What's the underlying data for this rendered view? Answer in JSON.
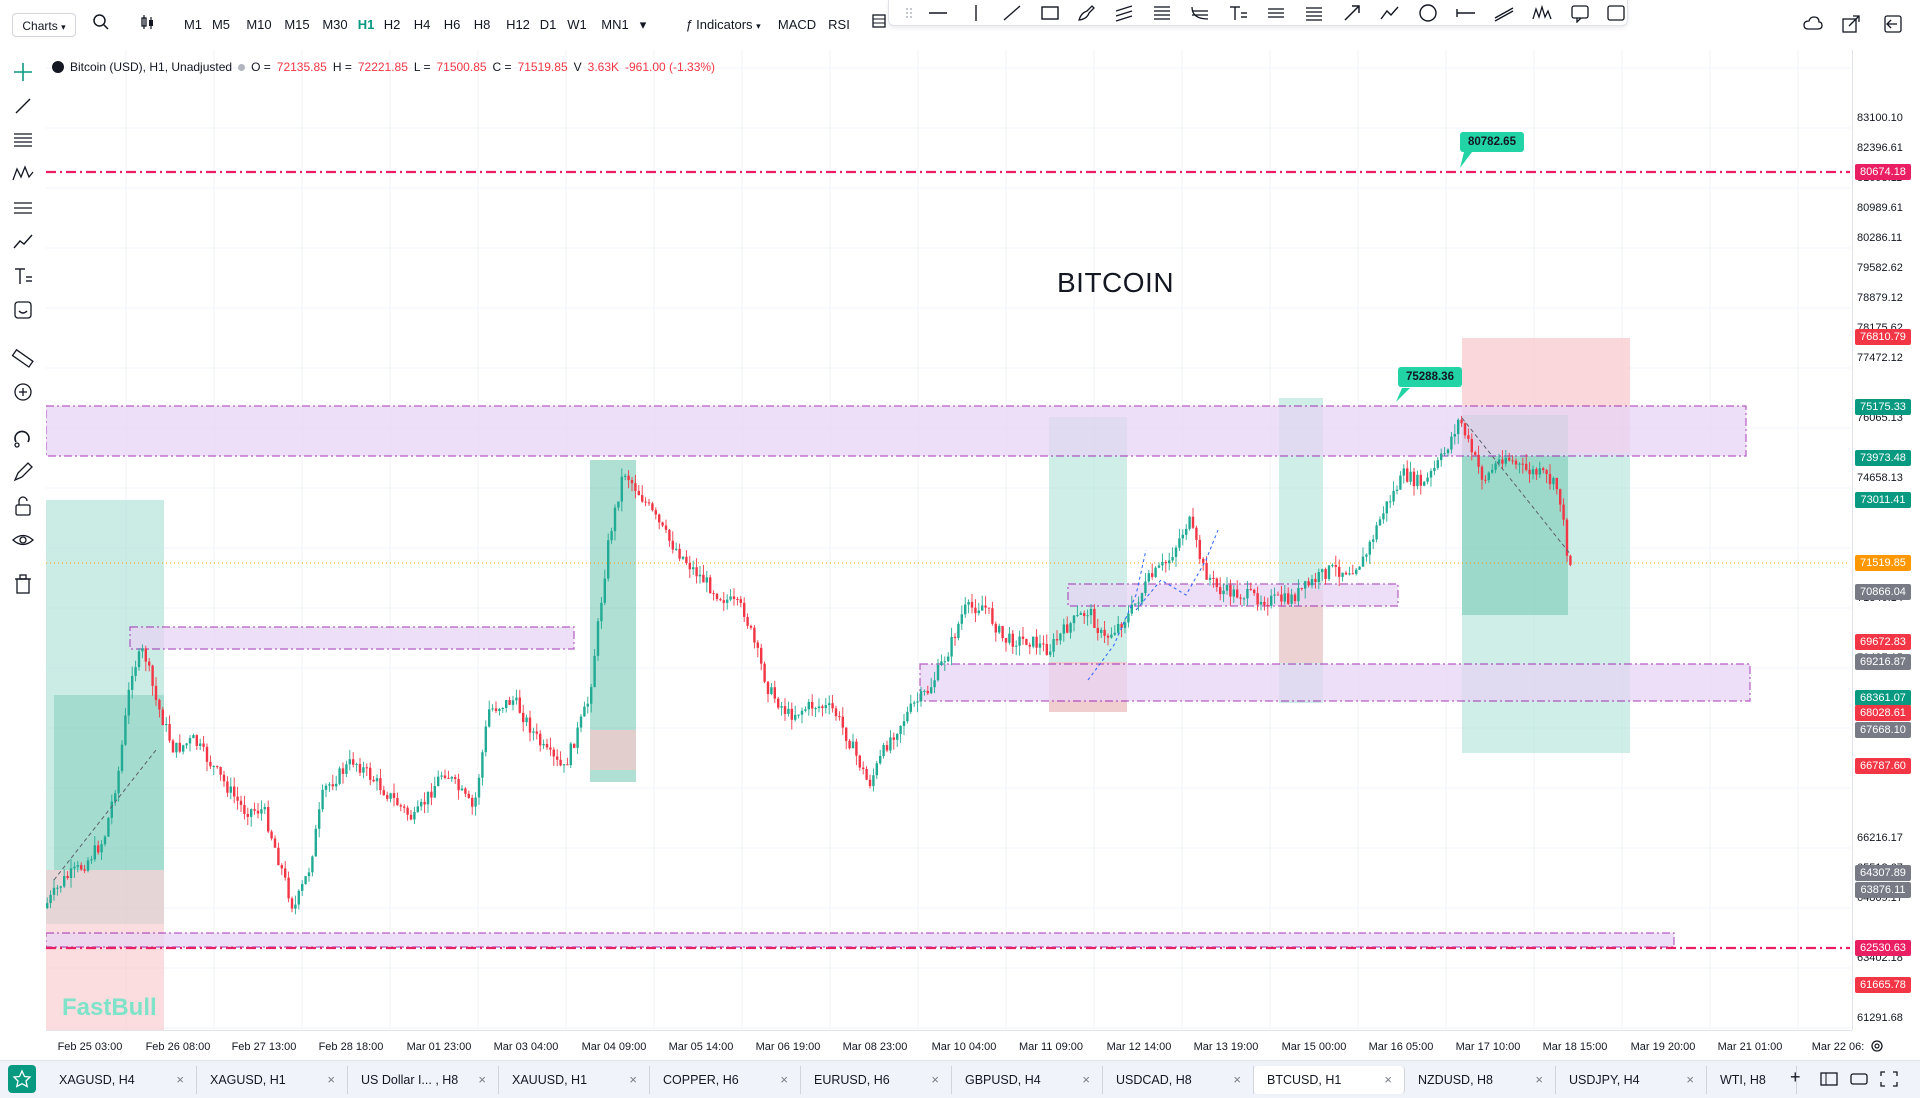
{
  "toolbar": {
    "charts_label": "Charts",
    "timeframes": [
      "M1",
      "M5",
      "M10",
      "M15",
      "M30",
      "H1",
      "H2",
      "H4",
      "H6",
      "H8",
      "H12",
      "D1",
      "W1",
      "MN1"
    ],
    "active_timeframe": "H1",
    "indicators_label": "Indicators",
    "macd_label": "MACD",
    "rsi_label": "RSI"
  },
  "legend": {
    "symbol": "Bitcoin (USD), H1, Unadjusted",
    "open_label": "O =",
    "open": "72135.85",
    "high_label": "H =",
    "high": "72221.85",
    "low_label": "L =",
    "low": "71500.85",
    "close_label": "C =",
    "close": "71519.85",
    "volume_label": "V",
    "volume": "3.63K",
    "change": "-961.00 (-1.33%)"
  },
  "chart": {
    "title": "BITCOIN",
    "watermark": "FastBull",
    "callout_high": "80782.65",
    "callout_mid": "75288.36"
  },
  "price_axis": {
    "labels": [
      "83100.10",
      "82396.61",
      "81693.11",
      "80989.61",
      "80286.11",
      "79582.62",
      "78879.12",
      "78175.62",
      "77472.12",
      "76065.13",
      "74658.13",
      "72547.64",
      "71846.14",
      "70437.15",
      "69216.87",
      "66216.17",
      "65512.67",
      "64809.17",
      "63402.18",
      "61291.68"
    ],
    "badges": [
      {
        "text": "80674.18",
        "color": "#e91e63"
      },
      {
        "text": "76810.79",
        "color": "#f23645"
      },
      {
        "text": "75175.33",
        "color": "#089981"
      },
      {
        "text": "73973.48",
        "color": "#089981"
      },
      {
        "text": "73011.41",
        "color": "#089981"
      },
      {
        "text": "71519.85",
        "color": "#ff9800"
      },
      {
        "text": "70866.04",
        "color": "#787b86"
      },
      {
        "text": "69672.83",
        "color": "#f23645"
      },
      {
        "text": "69216.87",
        "color": "#787b86"
      },
      {
        "text": "68361.07",
        "color": "#089981"
      },
      {
        "text": "68028.61",
        "color": "#f23645"
      },
      {
        "text": "67668.10",
        "color": "#787b86"
      },
      {
        "text": "66787.60",
        "color": "#f23645"
      },
      {
        "text": "64307.89",
        "color": "#787b86"
      },
      {
        "text": "63876.11",
        "color": "#787b86"
      },
      {
        "text": "62530.63",
        "color": "#e91e63"
      },
      {
        "text": "61665.78",
        "color": "#f23645"
      }
    ]
  },
  "time_axis": {
    "labels": [
      "Feb 25 03:00",
      "Feb 26 08:00",
      "Feb 27 13:00",
      "Feb 28 18:00",
      "Mar 01 23:00",
      "Mar 03 04:00",
      "Mar 04 09:00",
      "Mar 05 14:00",
      "Mar 06 19:00",
      "Mar 08 23:00",
      "Mar 10 04:00",
      "Mar 11 09:00",
      "Mar 12 14:00",
      "Mar 13 19:00",
      "Mar 15 00:00",
      "Mar 16 05:00",
      "Mar 17 10:00",
      "Mar 18 15:00",
      "Mar 19 20:00",
      "Mar 21 01:00",
      "Mar 22 06:"
    ]
  },
  "tabs": [
    {
      "label": "XAGUSD, H4"
    },
    {
      "label": "XAGUSD, H1"
    },
    {
      "label": "US Dollar I... , H8"
    },
    {
      "label": "XAUUSD, H1"
    },
    {
      "label": "COPPER, H6"
    },
    {
      "label": "EURUSD, H6"
    },
    {
      "label": "GBPUSD, H4"
    },
    {
      "label": "USDCAD, H8"
    },
    {
      "label": "BTCUSD, H1"
    },
    {
      "label": "NZDUSD, H8"
    },
    {
      "label": "USDJPY, H4"
    },
    {
      "label": "WTI, H8"
    }
  ],
  "active_tab": "BTCUSD, H1",
  "tab_close_glyph": "×",
  "tab_add_glyph": "+",
  "colors": {
    "up": "#22ab94",
    "down": "#f23645",
    "zone_purple": "#e8d5f5",
    "zone_border": "#9c27b0",
    "line_magenta": "#e91e63",
    "long_green": "#a7e0d4",
    "short_red": "#f8c6cb"
  }
}
